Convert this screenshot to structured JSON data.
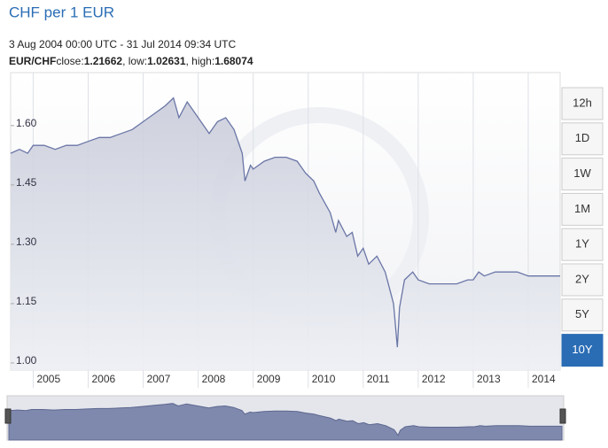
{
  "header": {
    "title": "CHF per 1 EUR",
    "range": "3 Aug 2004 00:00 UTC - 31 Jul 2014 09:34 UTC",
    "pair": "EUR/CHF",
    "stats": [
      {
        "label": "close:",
        "value": "1.21662"
      },
      {
        "label": ", low:",
        "value": "1.02631"
      },
      {
        "label": ", high:",
        "value": "1.68074"
      }
    ]
  },
  "range_buttons": [
    "12h",
    "1D",
    "1W",
    "1M",
    "1Y",
    "2Y",
    "5Y",
    "10Y"
  ],
  "selected_button": 7,
  "chart_data": {
    "type": "area",
    "series": [
      {
        "name": "EUR/CHF",
        "color": "#6a76a6",
        "x": [
          2004.59,
          2004.75,
          2004.9,
          2005.0,
          2005.2,
          2005.4,
          2005.6,
          2005.8,
          2006.0,
          2006.2,
          2006.4,
          2006.6,
          2006.8,
          2007.0,
          2007.2,
          2007.4,
          2007.55,
          2007.65,
          2007.8,
          2007.9,
          2008.0,
          2008.2,
          2008.35,
          2008.5,
          2008.65,
          2008.8,
          2008.85,
          2008.95,
          2009.0,
          2009.2,
          2009.4,
          2009.6,
          2009.8,
          2009.95,
          2010.1,
          2010.2,
          2010.4,
          2010.5,
          2010.55,
          2010.7,
          2010.8,
          2010.9,
          2011.0,
          2011.1,
          2011.25,
          2011.4,
          2011.55,
          2011.62,
          2011.66,
          2011.75,
          2011.9,
          2012.0,
          2012.2,
          2012.5,
          2012.7,
          2012.9,
          2013.0,
          2013.1,
          2013.2,
          2013.4,
          2013.6,
          2013.8,
          2014.0,
          2014.2,
          2014.4,
          2014.58
        ],
        "values": [
          1.53,
          1.54,
          1.53,
          1.55,
          1.55,
          1.54,
          1.55,
          1.55,
          1.56,
          1.57,
          1.57,
          1.58,
          1.59,
          1.61,
          1.63,
          1.65,
          1.67,
          1.62,
          1.66,
          1.64,
          1.62,
          1.58,
          1.61,
          1.62,
          1.59,
          1.53,
          1.46,
          1.5,
          1.49,
          1.51,
          1.52,
          1.52,
          1.51,
          1.48,
          1.46,
          1.43,
          1.38,
          1.33,
          1.36,
          1.32,
          1.33,
          1.27,
          1.29,
          1.25,
          1.27,
          1.23,
          1.15,
          1.04,
          1.14,
          1.21,
          1.23,
          1.21,
          1.2,
          1.2,
          1.2,
          1.21,
          1.21,
          1.23,
          1.22,
          1.23,
          1.23,
          1.23,
          1.22,
          1.22,
          1.22,
          1.22
        ]
      }
    ],
    "xlim": [
      2004.59,
      2014.58
    ],
    "xticks": [
      2005,
      2006,
      2007,
      2008,
      2009,
      2010,
      2011,
      2012,
      2013,
      2014
    ],
    "ylim": [
      0.982,
      1.734
    ],
    "yticks": [
      {
        "value": 1.6,
        "label": "1.60"
      },
      1.45,
      {
        "value": 1.3,
        "label": "1.30"
      },
      1.15,
      {
        "value": 1,
        "label": "1.00"
      }
    ],
    "grid": "x"
  }
}
